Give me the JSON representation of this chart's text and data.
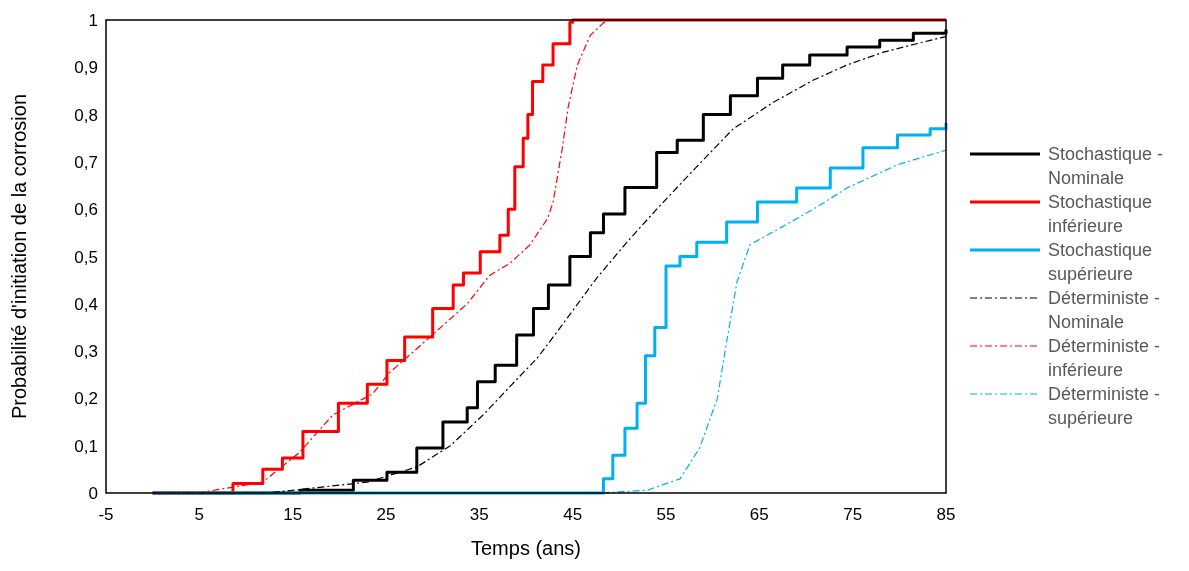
{
  "chart_data": {
    "type": "line",
    "xlabel": "Temps (ans)",
    "ylabel": "Probabilité d'initiation de la corrosion",
    "xlim": [
      -5,
      85
    ],
    "xticks": [
      -5,
      5,
      15,
      25,
      35,
      45,
      55,
      65,
      75,
      85
    ],
    "ylim": [
      0,
      1
    ],
    "yticks": [
      0,
      {
        "value": 0.1,
        "label": "0,1"
      },
      {
        "value": 0.2,
        "label": "0,2"
      },
      {
        "value": 0.3,
        "label": "0,3"
      },
      {
        "value": 0.4,
        "label": "0,4"
      },
      {
        "value": 0.5,
        "label": "0,5"
      },
      {
        "value": 0.6,
        "label": "0,6"
      },
      {
        "value": 0.7,
        "label": "0,7"
      },
      {
        "value": 0.8,
        "label": "0,8"
      },
      {
        "value": 0.9,
        "label": "0,9"
      },
      1
    ],
    "grid": false,
    "legend": "right",
    "series": [
      {
        "name": "Stochastique - Nominale",
        "color": "#000000",
        "type": "step",
        "line_style": "solid",
        "x": [
          0,
          15.8,
          21.5,
          25.1,
          28.3,
          31.1,
          33.7,
          34.8,
          36.7,
          39,
          40.8,
          42.4,
          44.7,
          46.9,
          48.3,
          50.6,
          54,
          56.2,
          59,
          61.9,
          64.8,
          67.5,
          70.4,
          74.4,
          77.9,
          81.5,
          85
        ],
        "values": [
          0,
          0.006,
          0.027,
          0.044,
          0.095,
          0.15,
          0.18,
          0.235,
          0.27,
          0.334,
          0.39,
          0.44,
          0.5,
          0.55,
          0.59,
          0.646,
          0.72,
          0.746,
          0.8,
          0.84,
          0.877,
          0.905,
          0.926,
          0.943,
          0.957,
          0.972,
          0.98
        ]
      },
      {
        "name": "Stochastique inférieure",
        "color": "#ff0000",
        "type": "step",
        "line_style": "solid",
        "x": [
          0,
          4.8,
          8.6,
          11.8,
          13.9,
          16.1,
          19.9,
          23,
          25.1,
          27,
          30,
          32.2,
          33.3,
          35.1,
          37.2,
          38.1,
          38.8,
          39.7,
          40.2,
          40.7,
          41.8,
          42.9,
          44.7,
          45,
          85
        ],
        "values": [
          0,
          0,
          0.02,
          0.05,
          0.074,
          0.13,
          0.19,
          0.23,
          0.28,
          0.33,
          0.39,
          0.44,
          0.465,
          0.51,
          0.545,
          0.6,
          0.69,
          0.75,
          0.8,
          0.87,
          0.905,
          0.95,
          0.995,
          1,
          1
        ]
      },
      {
        "name": "Stochastique supérieure",
        "color": "#00b0f0",
        "type": "step",
        "line_style": "solid",
        "x": [
          0,
          46.9,
          48.3,
          49.3,
          50.6,
          51.9,
          52.8,
          53.8,
          55,
          56.5,
          58.3,
          61.5,
          64.8,
          69,
          72.6,
          76.1,
          79.8,
          83.3,
          85
        ],
        "values": [
          0,
          0,
          0.03,
          0.08,
          0.137,
          0.19,
          0.29,
          0.35,
          0.48,
          0.5,
          0.53,
          0.573,
          0.615,
          0.645,
          0.687,
          0.73,
          0.757,
          0.77,
          0.782
        ]
      },
      {
        "name": "Déterministe - Nominale",
        "color": "#000000",
        "type": "line",
        "line_style": "dashed",
        "x": [
          0,
          12.3,
          23,
          28.3,
          31.9,
          35.4,
          39,
          41.2,
          43.3,
          47.6,
          50.8,
          54,
          58.3,
          62.2,
          66.5,
          70.8,
          74.4,
          78.3,
          83.3,
          85
        ],
        "values": [
          0,
          0,
          0.023,
          0.055,
          0.1,
          0.165,
          0.24,
          0.285,
          0.34,
          0.455,
          0.53,
          0.6,
          0.69,
          0.77,
          0.826,
          0.873,
          0.905,
          0.932,
          0.957,
          0.965
        ]
      },
      {
        "name": "Déterministe - inférieure",
        "color": "#ff0000",
        "type": "line",
        "line_style": "dashed",
        "x": [
          0,
          4.8,
          11.8,
          15.8,
          19.3,
          23.6,
          25.4,
          28.3,
          33.7,
          36.1,
          38.3,
          40.4,
          42.3,
          42.9,
          43.9,
          44.5,
          45.5,
          46.9,
          48.3,
          49,
          85
        ],
        "values": [
          0,
          0,
          0.023,
          0.087,
          0.165,
          0.21,
          0.255,
          0.305,
          0.4,
          0.46,
          0.486,
          0.524,
          0.58,
          0.615,
          0.73,
          0.814,
          0.905,
          0.968,
          0.994,
          1,
          1
        ]
      },
      {
        "name": "Déterministe - supérieure",
        "color": "#00b0f0",
        "type": "line",
        "line_style": "dashed",
        "x": [
          0,
          48,
          53,
          56.5,
          58.6,
          60.5,
          61.5,
          62.6,
          64,
          67.2,
          70.8,
          74.4,
          79.8,
          85
        ],
        "values": [
          0,
          0,
          0.006,
          0.03,
          0.095,
          0.2,
          0.32,
          0.446,
          0.525,
          0.56,
          0.6,
          0.645,
          0.694,
          0.725
        ]
      }
    ]
  }
}
